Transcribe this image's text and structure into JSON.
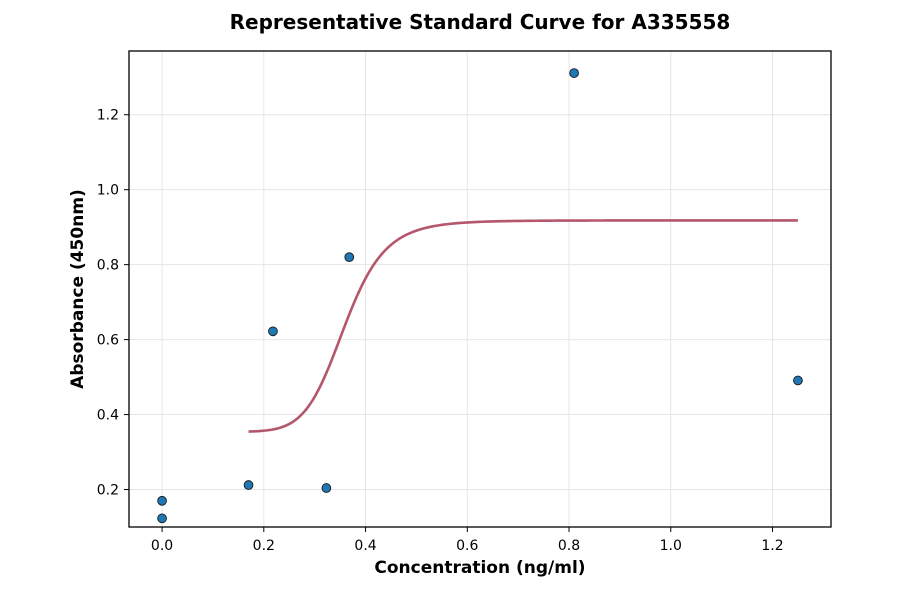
{
  "chart_data": {
    "type": "scatter",
    "title": "Representative Standard Curve for A335558",
    "xlabel": "Concentration (ng/ml)",
    "ylabel": "Absorbance (450nm)",
    "xlim": [
      -0.065,
      1.315
    ],
    "ylim": [
      0.1,
      1.37
    ],
    "xticks": [
      0.0,
      0.2,
      0.4,
      0.6,
      0.8,
      1.0,
      1.2
    ],
    "yticks": [
      0.2,
      0.4,
      0.6,
      0.8,
      1.0,
      1.2
    ],
    "xtick_labels": [
      "0.0",
      "0.2",
      "0.4",
      "0.6",
      "0.8",
      "1.0",
      "1.2"
    ],
    "ytick_labels": [
      "0.2",
      "0.4",
      "0.6",
      "0.8",
      "1.0",
      "1.2"
    ],
    "grid": true,
    "series": [
      {
        "kind": "points",
        "color": "#1f77b4",
        "x": [
          0.0,
          0.0,
          0.17,
          0.218,
          0.323,
          0.368,
          0.81,
          1.25
        ],
        "y": [
          0.123,
          0.17,
          0.212,
          0.622,
          0.204,
          0.82,
          1.311,
          0.491
        ]
      },
      {
        "kind": "fit-curve",
        "color": "#b5566b",
        "model": "4PL",
        "x_range": [
          0.17,
          1.25
        ],
        "params": {
          "bottom": 0.354,
          "top": 0.918,
          "ec50": 0.359,
          "hill": 9.0
        }
      }
    ]
  }
}
